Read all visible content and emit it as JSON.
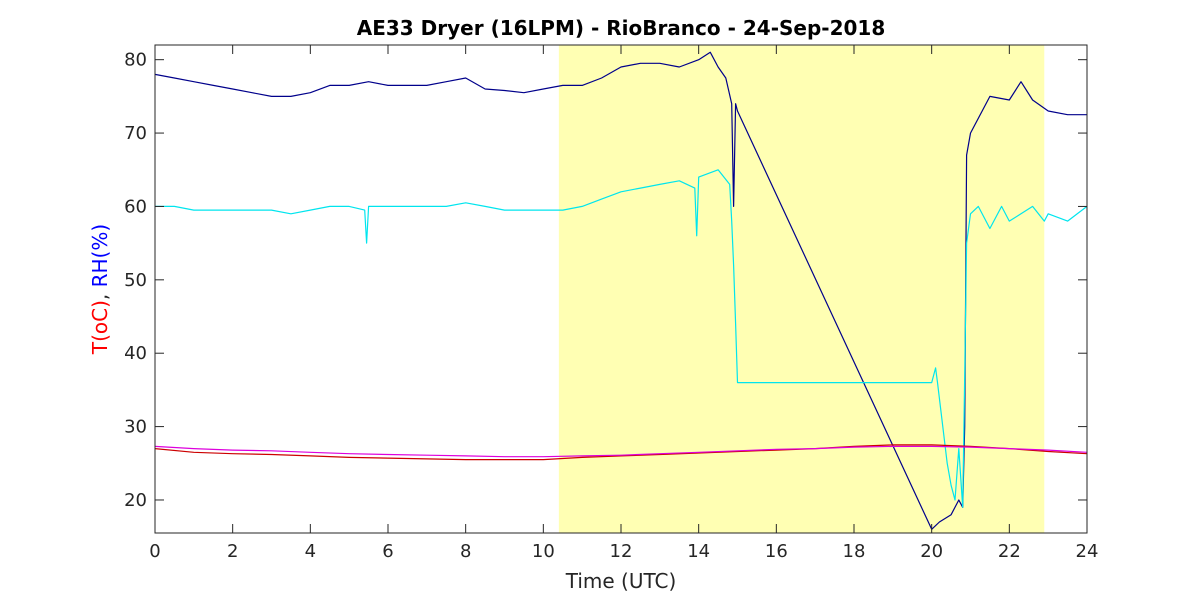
{
  "chart_data": {
    "type": "line",
    "title": "AE33 Dryer (16LPM)  - RioBranco - 24-Sep-2018",
    "xlabel": "Time (UTC)",
    "ylabel": {
      "part1": "T(oC)",
      "separator": ", ",
      "part2": "RH(%)",
      "part1_color": "#ff0000",
      "part2_color": "#0000ff"
    },
    "xlim": [
      0,
      24
    ],
    "ylim": [
      15.5,
      82
    ],
    "xticks": [
      0,
      2,
      4,
      6,
      8,
      10,
      12,
      14,
      16,
      18,
      20,
      22,
      24
    ],
    "yticks": [
      20,
      30,
      40,
      50,
      60,
      70,
      80
    ],
    "highlight_band": {
      "x_start": 10.4,
      "x_end": 22.9,
      "color": "#ffffb3"
    },
    "grid": false,
    "series": [
      {
        "color": "#00008b",
        "x": [
          0,
          0.5,
          1,
          1.5,
          2,
          2.5,
          3,
          3.5,
          4,
          4.5,
          5,
          5.5,
          6,
          6.5,
          7,
          7.5,
          8,
          8.5,
          9,
          9.5,
          10,
          10.5,
          11,
          11.5,
          12,
          12.5,
          13,
          13.5,
          14,
          14.3,
          14.5,
          14.7,
          14.85,
          14.9,
          14.95,
          15.0,
          20.0,
          20.2,
          20.5,
          20.7,
          20.8,
          20.85,
          20.9,
          21.0,
          21.5,
          22.0,
          22.3,
          22.6,
          23.0,
          23.5,
          24.0
        ],
        "y": [
          78,
          77.5,
          77,
          76.5,
          76,
          75.5,
          75,
          75,
          75.5,
          76.5,
          76.5,
          77,
          76.5,
          76.5,
          76.5,
          77,
          77.5,
          76,
          75.8,
          75.5,
          76,
          76.5,
          76.5,
          77.5,
          79,
          79.5,
          79.5,
          79,
          80,
          81,
          79,
          77.5,
          74,
          60,
          74,
          73,
          16,
          17,
          18,
          20,
          19,
          30,
          67,
          70,
          75,
          74.5,
          77,
          74.5,
          73,
          72.5,
          72.5
        ]
      },
      {
        "color": "#00e5ee",
        "x": [
          0,
          0.5,
          1,
          1.5,
          2,
          2.5,
          3,
          3.5,
          4,
          4.5,
          5,
          5.4,
          5.45,
          5.5,
          6,
          6.5,
          7,
          7.5,
          8,
          8.5,
          9,
          9.5,
          10,
          10.5,
          11,
          11.5,
          12,
          12.5,
          13,
          13.5,
          13.9,
          13.95,
          14.0,
          14.5,
          14.8,
          14.85,
          14.9,
          14.95,
          15.0,
          20.0,
          20.1,
          20.15,
          20.4,
          20.5,
          20.6,
          20.7,
          20.8,
          20.85,
          20.9,
          21.0,
          21.2,
          21.5,
          21.8,
          22.0,
          22.3,
          22.6,
          22.9,
          23.0,
          23.5,
          24.0
        ],
        "y": [
          60,
          60,
          59.5,
          59.5,
          59.5,
          59.5,
          59.5,
          59,
          59.5,
          60,
          60,
          59.5,
          55,
          60,
          60,
          60,
          60,
          60,
          60.5,
          60,
          59.5,
          59.5,
          59.5,
          59.5,
          60,
          61,
          62,
          62.5,
          63,
          63.5,
          62.5,
          56,
          64,
          65,
          63,
          58,
          52,
          44,
          36,
          36,
          38,
          36,
          25,
          22,
          20,
          27,
          19,
          37,
          55,
          59,
          60,
          57,
          60,
          58,
          59,
          60,
          58,
          59,
          58,
          60
        ]
      },
      {
        "color": "#cc0000",
        "x": [
          0,
          1,
          2,
          3,
          4,
          5,
          6,
          7,
          8,
          9,
          10,
          11,
          12,
          13,
          14,
          15,
          16,
          17,
          18,
          19,
          20,
          21,
          22,
          23,
          24
        ],
        "y": [
          27,
          26.5,
          26.3,
          26.2,
          26.0,
          25.8,
          25.7,
          25.6,
          25.5,
          25.5,
          25.5,
          25.8,
          26.0,
          26.2,
          26.4,
          26.6,
          26.8,
          27.0,
          27.3,
          27.5,
          27.5,
          27.3,
          27.0,
          26.6,
          26.3
        ]
      },
      {
        "color": "#dd00dd",
        "x": [
          0,
          1,
          2,
          3,
          4,
          5,
          6,
          7,
          8,
          9,
          10,
          11,
          12,
          13,
          14,
          15,
          16,
          17,
          18,
          19,
          20,
          21,
          22,
          23,
          24
        ],
        "y": [
          27.3,
          27.0,
          26.8,
          26.7,
          26.5,
          26.3,
          26.2,
          26.1,
          26.0,
          25.9,
          25.9,
          26.0,
          26.1,
          26.3,
          26.5,
          26.7,
          26.9,
          27.0,
          27.2,
          27.3,
          27.3,
          27.2,
          27.0,
          26.8,
          26.5
        ]
      }
    ]
  }
}
